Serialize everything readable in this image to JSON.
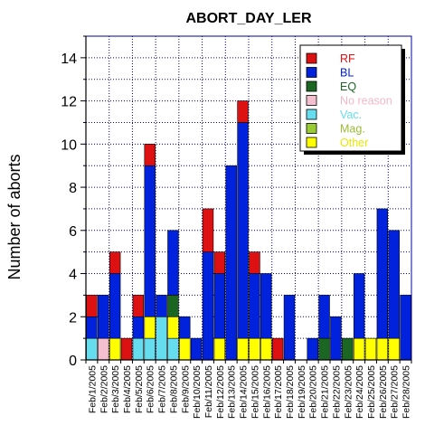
{
  "chart_data": {
    "type": "bar",
    "stacked": true,
    "title": "ABORT_DAY_LER",
    "xlabel": "",
    "ylabel": "Number of aborts",
    "ylim": [
      0,
      15
    ],
    "yticks": [
      0,
      2,
      4,
      6,
      8,
      10,
      12,
      14
    ],
    "grid": true,
    "legend_position": "top-right",
    "categories": [
      "Feb/1/2005",
      "Feb/2/2005",
      "Feb/3/2005",
      "Feb/4/2005",
      "Feb/5/2005",
      "Feb/6/2005",
      "Feb/7/2005",
      "Feb/8/2005",
      "Feb/9/2005",
      "Feb/10/2005",
      "Feb/11/2005",
      "Feb/12/2005",
      "Feb/13/2005",
      "Feb/14/2005",
      "Feb/15/2005",
      "Feb/16/2005",
      "Feb/17/2005",
      "Feb/18/2005",
      "Feb/19/2005",
      "Feb/20/2005",
      "Feb/21/2005",
      "Feb/22/2005",
      "Feb/23/2005",
      "Feb/24/2005",
      "Feb/25/2005",
      "Feb/26/2005",
      "Feb/27/2005",
      "Feb/28/2005"
    ],
    "series": [
      {
        "name": "Vac.",
        "color": "#66ddee",
        "values": [
          1,
          0,
          0,
          0,
          1,
          1,
          2,
          1,
          0,
          0,
          0,
          0,
          0,
          0,
          0,
          0,
          0,
          0,
          0,
          0,
          0,
          0,
          0,
          0,
          0,
          0,
          0,
          0
        ]
      },
      {
        "name": "No reason",
        "color": "#f4c0d0",
        "values": [
          0,
          1,
          0,
          0,
          0,
          0,
          0,
          0,
          0,
          0,
          0,
          0,
          0,
          0,
          0,
          0,
          0,
          0,
          0,
          0,
          0,
          0,
          0,
          0,
          0,
          0,
          0,
          0
        ]
      },
      {
        "name": "Other",
        "color": "#ffff00",
        "values": [
          0,
          0,
          1,
          0,
          0,
          1,
          0,
          1,
          1,
          0,
          0,
          1,
          0,
          1,
          1,
          1,
          0,
          0,
          0,
          0,
          0,
          0,
          0,
          1,
          1,
          1,
          1,
          0
        ]
      },
      {
        "name": "Mag.",
        "color": "#99cc33",
        "values": [
          0,
          0,
          0,
          0,
          0,
          0,
          0,
          0,
          0,
          0,
          0,
          0,
          0,
          0,
          0,
          0,
          0,
          0,
          0,
          0,
          0,
          0,
          0,
          0,
          0,
          0,
          0,
          0
        ]
      },
      {
        "name": "EQ",
        "color": "#1a6622",
        "values": [
          0,
          0,
          0,
          0,
          0,
          0,
          0,
          1,
          0,
          0,
          0,
          0,
          0,
          0,
          0,
          0,
          0,
          0,
          0,
          0,
          1,
          0,
          1,
          0,
          0,
          0,
          0,
          0
        ]
      },
      {
        "name": "BL",
        "color": "#0022dd",
        "values": [
          1,
          2,
          3,
          0,
          1,
          7,
          1,
          3,
          1,
          1,
          5,
          3,
          9,
          10,
          3,
          3,
          0,
          3,
          0,
          1,
          2,
          2,
          0,
          3,
          0,
          6,
          5,
          3
        ]
      },
      {
        "name": "RF",
        "color": "#dd1111",
        "values": [
          1,
          0,
          1,
          1,
          1,
          1,
          0,
          0,
          0,
          0,
          2,
          1,
          0,
          1,
          1,
          0,
          1,
          0,
          0,
          0,
          0,
          0,
          0,
          0,
          0,
          0,
          0,
          0
        ]
      }
    ],
    "legend": [
      {
        "name": "RF",
        "color": "#dd1111",
        "text_color": "#dd1111"
      },
      {
        "name": "BL",
        "color": "#0022dd",
        "text_color": "#0022dd"
      },
      {
        "name": "EQ",
        "color": "#1a6622",
        "text_color": "#1a6622"
      },
      {
        "name": "No reason",
        "color": "#f4c0d0",
        "text_color": "#f4b8c8"
      },
      {
        "name": "Vac.",
        "color": "#66ddee",
        "text_color": "#66ddee"
      },
      {
        "name": "Mag.",
        "color": "#99cc33",
        "text_color": "#99bb33"
      },
      {
        "name": "Other",
        "color": "#ffff00",
        "text_color": "#e8e800"
      }
    ],
    "colors": {
      "axis": "#000000",
      "plot_border": "#0000aa",
      "grid": "#0000aa"
    }
  }
}
